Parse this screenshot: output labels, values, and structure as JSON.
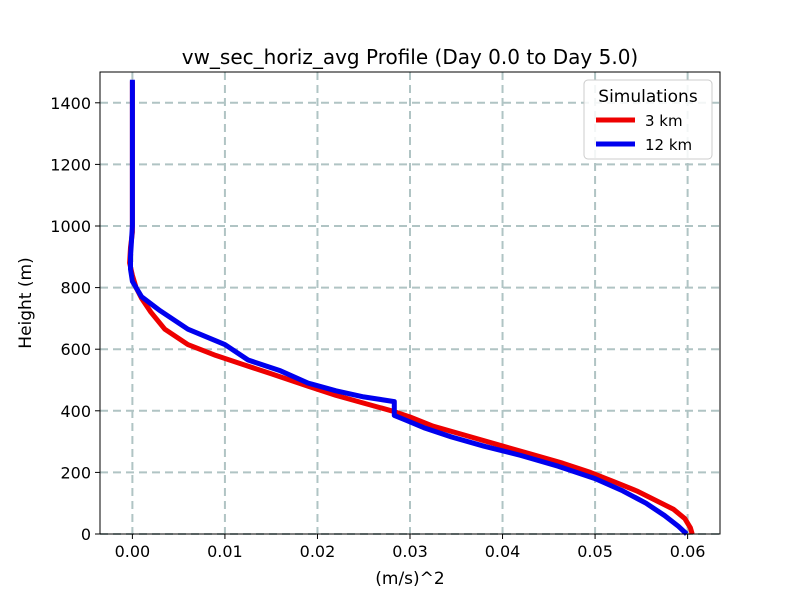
{
  "chart_data": {
    "type": "line",
    "title": "vw_sec_horiz_avg Profile (Day 0.0 to Day 5.0)",
    "xlabel": "(m/s)^2",
    "ylabel": "Height (m)",
    "xlim": [
      -0.0035,
      0.0635
    ],
    "ylim": [
      0,
      1500
    ],
    "xticks": [
      0.0,
      0.01,
      0.02,
      0.03,
      0.04,
      0.05,
      0.06
    ],
    "xtick_labels": [
      "0.00",
      "0.01",
      "0.02",
      "0.03",
      "0.04",
      "0.05",
      "0.06"
    ],
    "yticks": [
      0,
      200,
      400,
      600,
      800,
      1000,
      1200,
      1400
    ],
    "ytick_labels": [
      "0",
      "200",
      "400",
      "600",
      "800",
      "1000",
      "1200",
      "1400"
    ],
    "grid": true,
    "legend": {
      "title": "Simulations",
      "position": "top-right"
    },
    "series": [
      {
        "name": "3 km",
        "color": "#ee0000",
        "points": [
          [
            0.0605,
            0
          ],
          [
            0.0603,
            20
          ],
          [
            0.0597,
            50
          ],
          [
            0.0585,
            80
          ],
          [
            0.0565,
            110
          ],
          [
            0.0545,
            140
          ],
          [
            0.052,
            170
          ],
          [
            0.0495,
            200
          ],
          [
            0.0465,
            230
          ],
          [
            0.043,
            260
          ],
          [
            0.0395,
            290
          ],
          [
            0.036,
            320
          ],
          [
            0.0325,
            350
          ],
          [
            0.03,
            380
          ],
          [
            0.028,
            400
          ],
          [
            0.025,
            425
          ],
          [
            0.022,
            450
          ],
          [
            0.019,
            480
          ],
          [
            0.015,
            520
          ],
          [
            0.012,
            550
          ],
          [
            0.009,
            580
          ],
          [
            0.006,
            615
          ],
          [
            0.0035,
            665
          ],
          [
            0.002,
            720
          ],
          [
            0.001,
            765
          ],
          [
            0.0004,
            800
          ],
          [
            0.0,
            840
          ],
          [
            -0.0003,
            880
          ],
          [
            -0.0002,
            930
          ],
          [
            0.0,
            980
          ],
          [
            0.0,
            1200
          ],
          [
            0.0,
            1470
          ]
        ]
      },
      {
        "name": "12 km",
        "color": "#0000ee",
        "points": [
          [
            0.0599,
            0
          ],
          [
            0.059,
            25
          ],
          [
            0.0575,
            60
          ],
          [
            0.0555,
            100
          ],
          [
            0.053,
            140
          ],
          [
            0.05,
            180
          ],
          [
            0.046,
            220
          ],
          [
            0.042,
            255
          ],
          [
            0.038,
            285
          ],
          [
            0.0345,
            315
          ],
          [
            0.0315,
            345
          ],
          [
            0.0295,
            370
          ],
          [
            0.0283,
            385
          ],
          [
            0.0283,
            405
          ],
          [
            0.0283,
            430
          ],
          [
            0.025,
            445
          ],
          [
            0.022,
            465
          ],
          [
            0.019,
            490
          ],
          [
            0.016,
            530
          ],
          [
            0.0125,
            565
          ],
          [
            0.01,
            615
          ],
          [
            0.006,
            665
          ],
          [
            0.003,
            725
          ],
          [
            0.001,
            770
          ],
          [
            0.0,
            820
          ],
          [
            -0.0002,
            860
          ],
          [
            -0.0002,
            900
          ],
          [
            0.0,
            1000
          ],
          [
            0.0,
            1200
          ],
          [
            0.0,
            1475
          ]
        ]
      }
    ]
  }
}
